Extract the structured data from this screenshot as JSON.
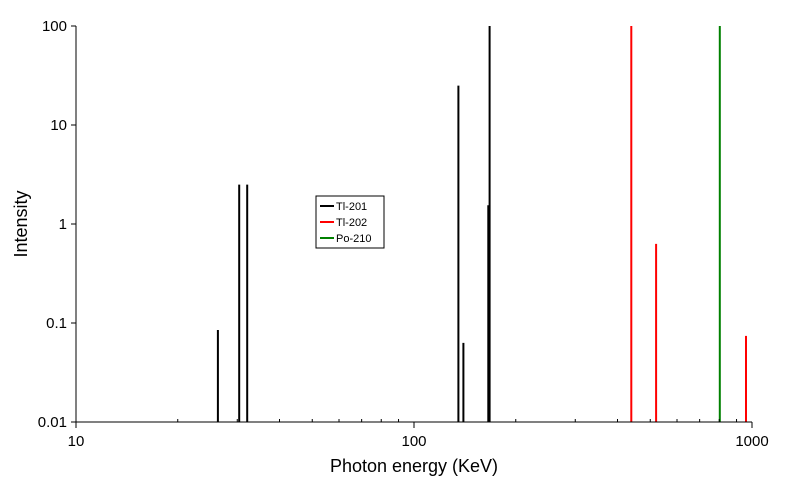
{
  "chart_data": {
    "type": "bar",
    "title": "",
    "xlabel": "Photon energy (KeV)",
    "ylabel": "Intensity",
    "xscale": "log",
    "yscale": "log",
    "xlim": [
      10,
      1000
    ],
    "ylim": [
      0.01,
      100
    ],
    "x_ticks": [
      "10",
      "100",
      "1000"
    ],
    "y_ticks": [
      "0.01",
      "0.1",
      "1",
      "10",
      "100"
    ],
    "grid": false,
    "legend_position": "center",
    "series": [
      {
        "name": "Tl-201",
        "color": "#000000",
        "points": [
          {
            "x": 26.3,
            "y": 0.085
          },
          {
            "x": 30.4,
            "y": 2.5
          },
          {
            "x": 32.1,
            "y": 2.5
          },
          {
            "x": 135.3,
            "y": 25
          },
          {
            "x": 140.0,
            "y": 0.063
          },
          {
            "x": 165.9,
            "y": 1.55
          },
          {
            "x": 167.4,
            "y": 100
          }
        ]
      },
      {
        "name": "Tl-202",
        "color": "#ff0000",
        "points": [
          {
            "x": 439.5,
            "y": 100
          },
          {
            "x": 520.3,
            "y": 0.63
          },
          {
            "x": 959.8,
            "y": 0.074
          }
        ]
      },
      {
        "name": "Po-210",
        "color": "#008000",
        "points": [
          {
            "x": 803.1,
            "y": 100
          }
        ]
      }
    ]
  }
}
